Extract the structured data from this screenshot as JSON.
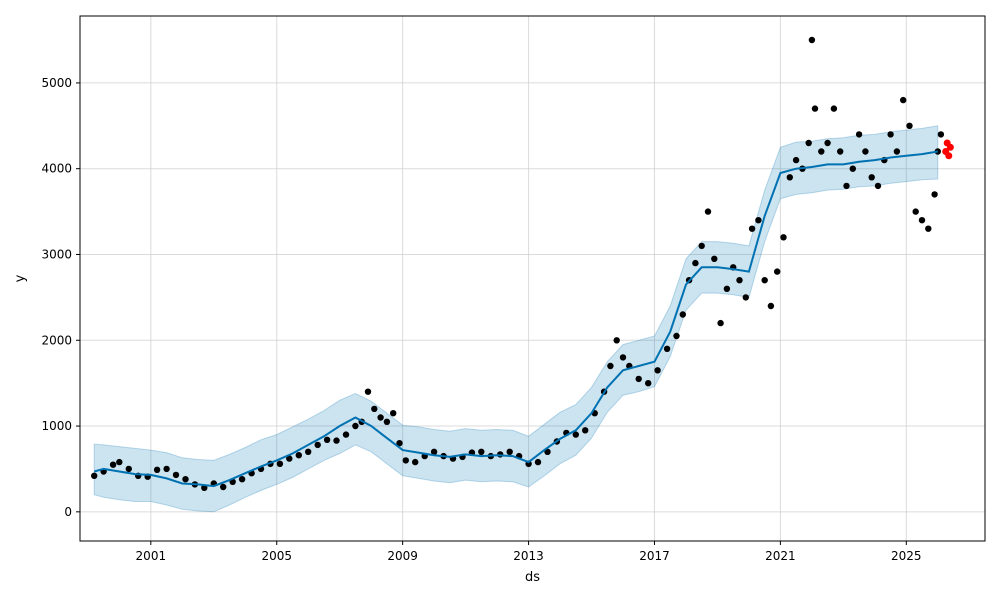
{
  "chart_data": {
    "type": "line",
    "xlabel": "ds",
    "ylabel": "y",
    "x_ticks": [
      "2001",
      "2005",
      "2009",
      "2013",
      "2017",
      "2021",
      "2025"
    ],
    "y_ticks": [
      "0",
      "1000",
      "2000",
      "3000",
      "4000",
      "5000"
    ],
    "xlim": [
      1998.75,
      2027.5
    ],
    "ylim": [
      -340,
      5780
    ],
    "grid": true,
    "colors": {
      "observed": "#000000",
      "forecast_line": "#0072B2",
      "uncertainty_band": "#0072B2",
      "future_points": "#ff0000"
    },
    "series": [
      {
        "role": "forecast",
        "x": [
          1999.2,
          1999.5,
          2000.0,
          2000.5,
          2001.0,
          2001.5,
          2002.0,
          2002.5,
          2003.0,
          2003.5,
          2004.0,
          2004.5,
          2005.0,
          2005.5,
          2006.0,
          2006.5,
          2007.0,
          2007.5,
          2008.0,
          2008.5,
          2009.0,
          2009.5,
          2010.0,
          2010.5,
          2011.0,
          2011.5,
          2012.0,
          2012.5,
          2013.0,
          2013.5,
          2014.0,
          2014.5,
          2015.0,
          2015.5,
          2016.0,
          2016.5,
          2017.0,
          2017.5,
          2018.0,
          2018.5,
          2019.0,
          2019.5,
          2020.0,
          2020.5,
          2021.0,
          2021.5,
          2022.0,
          2022.5,
          2023.0,
          2023.5,
          2024.0,
          2024.5,
          2025.0,
          2025.5,
          2026.0
        ],
        "y": [
          470,
          500,
          470,
          440,
          430,
          390,
          330,
          320,
          300,
          370,
          450,
          530,
          600,
          680,
          780,
          880,
          1000,
          1100,
          1000,
          860,
          720,
          690,
          660,
          640,
          670,
          650,
          660,
          650,
          580,
          720,
          850,
          950,
          1150,
          1450,
          1650,
          1700,
          1750,
          2100,
          2650,
          2850,
          2850,
          2830,
          2800,
          3450,
          3950,
          4000,
          4020,
          4050,
          4050,
          4080,
          4100,
          4130,
          4150,
          4170,
          4200
        ],
        "lower": [
          200,
          170,
          140,
          120,
          120,
          80,
          30,
          10,
          0,
          80,
          170,
          250,
          320,
          400,
          500,
          600,
          680,
          780,
          700,
          560,
          420,
          390,
          360,
          340,
          370,
          350,
          360,
          350,
          290,
          420,
          560,
          660,
          860,
          1160,
          1360,
          1400,
          1460,
          1810,
          2350,
          2550,
          2550,
          2530,
          2500,
          3150,
          3650,
          3700,
          3720,
          3750,
          3760,
          3790,
          3800,
          3830,
          3850,
          3870,
          3880
        ],
        "upper": [
          790,
          780,
          760,
          740,
          720,
          690,
          630,
          610,
          600,
          670,
          750,
          840,
          900,
          990,
          1080,
          1180,
          1300,
          1380,
          1290,
          1150,
          1010,
          990,
          960,
          940,
          970,
          950,
          960,
          950,
          880,
          1020,
          1160,
          1250,
          1450,
          1750,
          1950,
          2000,
          2050,
          2400,
          2950,
          3150,
          3150,
          3130,
          3100,
          3750,
          4250,
          4310,
          4320,
          4350,
          4360,
          4390,
          4400,
          4430,
          4450,
          4470,
          4500
        ]
      },
      {
        "role": "observed",
        "x": [
          1999.2,
          1999.5,
          1999.8,
          2000.0,
          2000.3,
          2000.6,
          2000.9,
          2001.2,
          2001.5,
          2001.8,
          2002.1,
          2002.4,
          2002.7,
          2003.0,
          2003.3,
          2003.6,
          2003.9,
          2004.2,
          2004.5,
          2004.8,
          2005.1,
          2005.4,
          2005.7,
          2006.0,
          2006.3,
          2006.6,
          2006.9,
          2007.2,
          2007.5,
          2007.7,
          2007.9,
          2008.1,
          2008.3,
          2008.5,
          2008.7,
          2008.9,
          2009.1,
          2009.4,
          2009.7,
          2010.0,
          2010.3,
          2010.6,
          2010.9,
          2011.2,
          2011.5,
          2011.8,
          2012.1,
          2012.4,
          2012.7,
          2013.0,
          2013.3,
          2013.6,
          2013.9,
          2014.2,
          2014.5,
          2014.8,
          2015.1,
          2015.4,
          2015.6,
          2015.8,
          2016.0,
          2016.2,
          2016.5,
          2016.8,
          2017.1,
          2017.4,
          2017.7,
          2017.9,
          2018.1,
          2018.3,
          2018.5,
          2018.7,
          2018.9,
          2019.1,
          2019.3,
          2019.5,
          2019.7,
          2019.9,
          2020.1,
          2020.3,
          2020.5,
          2020.7,
          2020.9,
          2021.1,
          2021.3,
          2021.5,
          2021.7,
          2021.9,
          2022.0,
          2022.1,
          2022.3,
          2022.5,
          2022.7,
          2022.9,
          2023.1,
          2023.3,
          2023.5,
          2023.7,
          2023.9,
          2024.1,
          2024.3,
          2024.5,
          2024.7,
          2024.9,
          2025.1,
          2025.3,
          2025.5,
          2025.7,
          2025.9,
          2026.0,
          2026.1
        ],
        "y": [
          420,
          470,
          550,
          580,
          500,
          420,
          410,
          490,
          500,
          430,
          380,
          320,
          280,
          330,
          290,
          350,
          380,
          450,
          500,
          560,
          560,
          620,
          660,
          700,
          780,
          840,
          830,
          900,
          1000,
          1050,
          1400,
          1200,
          1100,
          1050,
          1150,
          800,
          600,
          580,
          650,
          700,
          650,
          620,
          640,
          690,
          700,
          650,
          670,
          700,
          650,
          560,
          580,
          700,
          820,
          920,
          900,
          950,
          1150,
          1400,
          1700,
          2000,
          1800,
          1700,
          1550,
          1500,
          1650,
          1900,
          2050,
          2300,
          2700,
          2900,
          3100,
          3500,
          2950,
          2200,
          2600,
          2850,
          2700,
          2500,
          3300,
          3400,
          2700,
          2400,
          2800,
          3200,
          3900,
          4100,
          4000,
          4300,
          5500,
          4700,
          4200,
          4300,
          4700,
          4200,
          3800,
          4000,
          4400,
          4200,
          3900,
          3800,
          4100,
          4400,
          4200,
          4800,
          4500,
          3500,
          3400,
          3300,
          3700,
          4200,
          4400
        ],
        "color": "#000000"
      },
      {
        "role": "future",
        "x": [
          2026.25,
          2026.3,
          2026.35,
          2026.4
        ],
        "y": [
          4200,
          4300,
          4150,
          4250
        ],
        "color": "#ff0000"
      }
    ]
  }
}
